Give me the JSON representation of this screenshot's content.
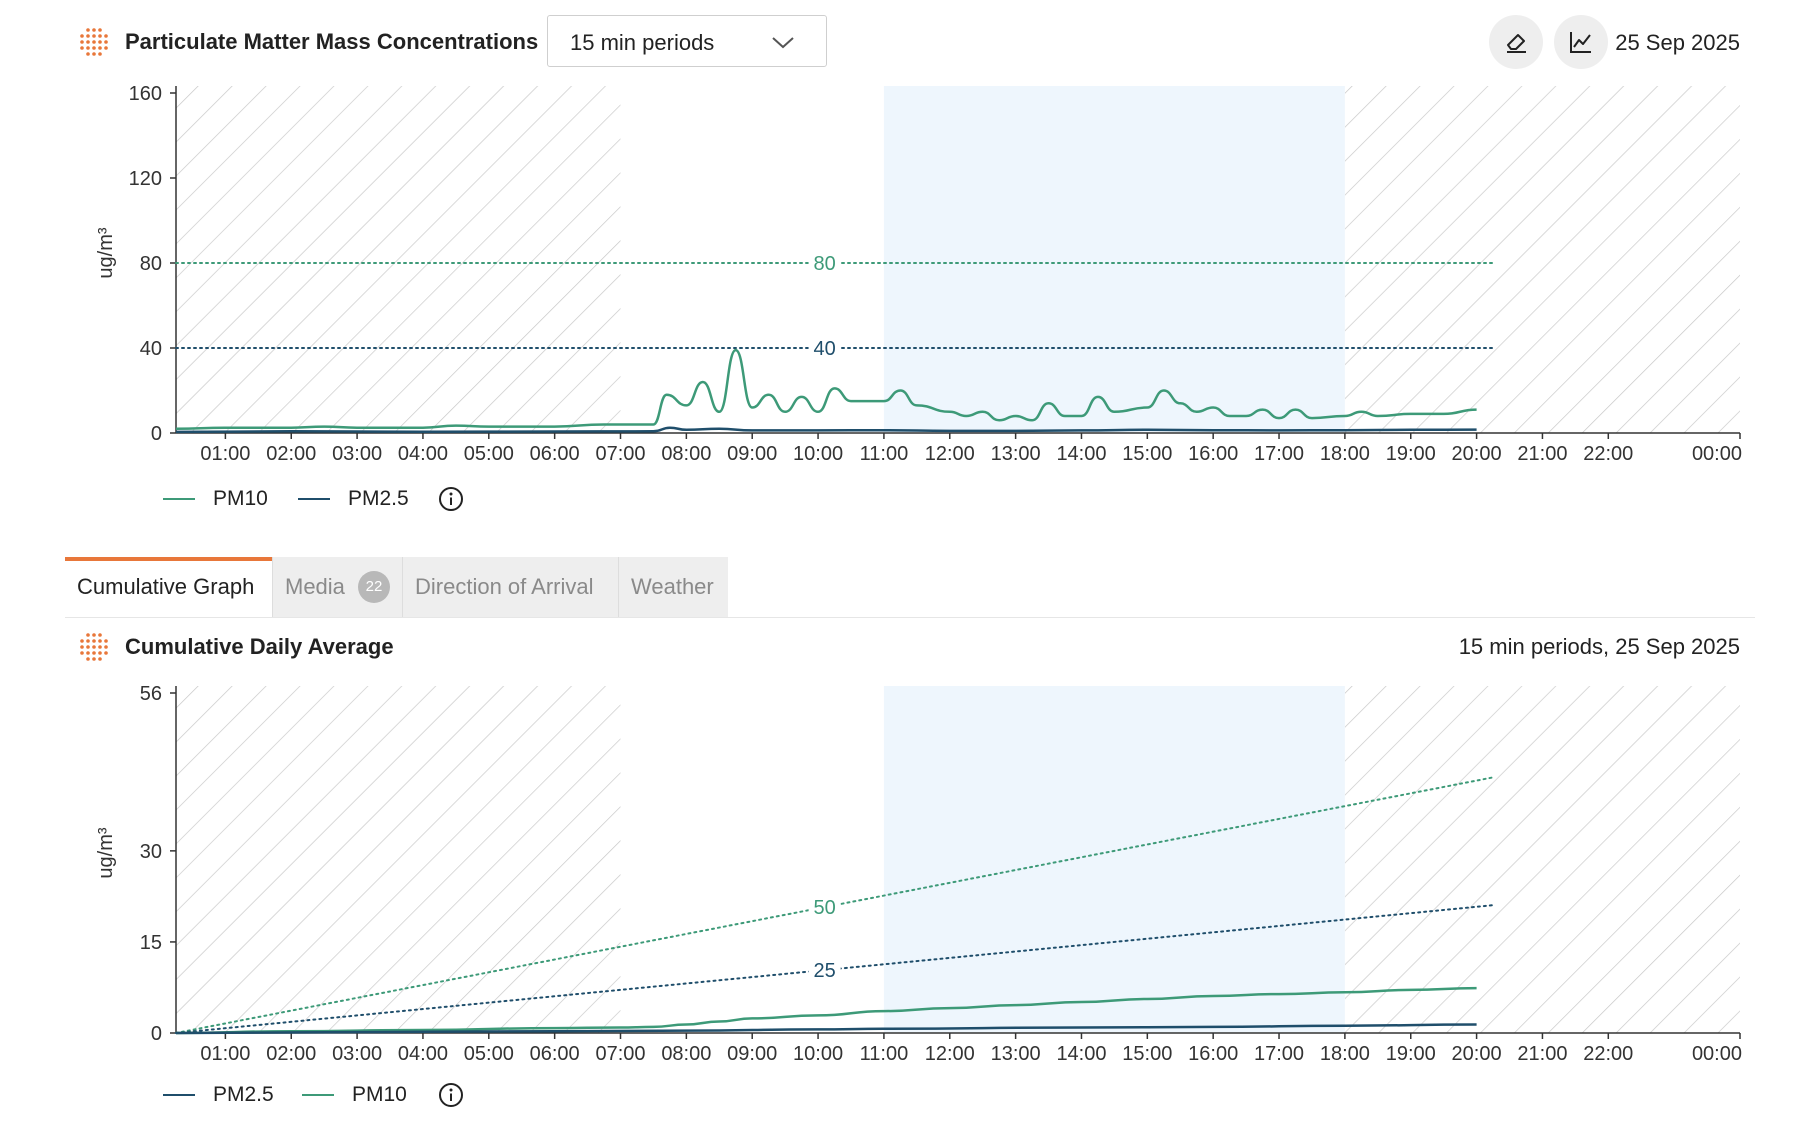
{
  "header": {
    "title": "Particulate Matter Mass Concentrations",
    "period_select": "15 min periods",
    "date": "25 Sep 2025",
    "icons": [
      "eraser-icon",
      "line-chart-icon"
    ]
  },
  "tabs": [
    {
      "label": "Cumulative Graph",
      "active": true
    },
    {
      "label": "Media",
      "badge": "22"
    },
    {
      "label": "Direction of Arrival"
    },
    {
      "label": "Weather"
    }
  ],
  "section2": {
    "title": "Cumulative Daily Average",
    "subtitle": "15 min periods, 25 Sep 2025"
  },
  "colors": {
    "pm10": "#3d9a78",
    "pm25": "#1f4e6b",
    "accent": "#e8773a",
    "shade": "#eef6fd"
  },
  "chart_data": [
    {
      "type": "line",
      "title": "Particulate Matter Mass Concentrations",
      "ylabel": "ug/m³",
      "ylim": [
        0,
        160
      ],
      "yticks": [
        0,
        40,
        80,
        120,
        160
      ],
      "xlim": [
        0.25,
        24
      ],
      "xticks": [
        {
          "h": 1,
          "label": "01:00"
        },
        {
          "h": 2,
          "label": "02:00"
        },
        {
          "h": 3,
          "label": "03:00"
        },
        {
          "h": 4,
          "label": "04:00"
        },
        {
          "h": 5,
          "label": "05:00"
        },
        {
          "h": 6,
          "label": "06:00"
        },
        {
          "h": 7,
          "label": "07:00"
        },
        {
          "h": 8,
          "label": "08:00"
        },
        {
          "h": 9,
          "label": "09:00"
        },
        {
          "h": 10,
          "label": "10:00"
        },
        {
          "h": 11,
          "label": "11:00"
        },
        {
          "h": 12,
          "label": "12:00"
        },
        {
          "h": 13,
          "label": "13:00"
        },
        {
          "h": 14,
          "label": "14:00"
        },
        {
          "h": 15,
          "label": "15:00"
        },
        {
          "h": 16,
          "label": "16:00"
        },
        {
          "h": 17,
          "label": "17:00"
        },
        {
          "h": 18,
          "label": "18:00"
        },
        {
          "h": 19,
          "label": "19:00"
        },
        {
          "h": 20,
          "label": "20:00"
        },
        {
          "h": 21,
          "label": "21:00"
        },
        {
          "h": 22,
          "label": "22:00"
        },
        {
          "h": 24,
          "label": "00:00"
        }
      ],
      "hatched_periods": [
        [
          0.25,
          7
        ],
        [
          18,
          24
        ]
      ],
      "highlight_period": [
        11,
        18
      ],
      "thresholds": [
        {
          "series": "PM10",
          "label": "80",
          "y0": 80,
          "y1": 80,
          "x_end": 20.25
        },
        {
          "series": "PM2.5",
          "label": "40",
          "y0": 40,
          "y1": 40,
          "x_end": 20.25
        }
      ],
      "legend": [
        "PM10",
        "PM2.5"
      ],
      "series": [
        {
          "name": "PM10",
          "color": "#3d9a78",
          "points": [
            [
              0.25,
              2
            ],
            [
              1,
              2.5
            ],
            [
              2,
              2.5
            ],
            [
              2.5,
              3
            ],
            [
              3,
              2.5
            ],
            [
              4,
              2.5
            ],
            [
              4.5,
              3.5
            ],
            [
              5,
              3
            ],
            [
              6,
              3
            ],
            [
              6.75,
              4
            ],
            [
              7,
              4
            ],
            [
              7.5,
              4
            ],
            [
              7.7,
              18
            ],
            [
              8,
              13
            ],
            [
              8.25,
              24
            ],
            [
              8.5,
              10
            ],
            [
              8.75,
              39
            ],
            [
              9,
              12
            ],
            [
              9.25,
              18
            ],
            [
              9.5,
              10
            ],
            [
              9.75,
              17
            ],
            [
              10,
              10
            ],
            [
              10.25,
              21
            ],
            [
              10.5,
              15
            ],
            [
              11,
              15
            ],
            [
              11.25,
              20
            ],
            [
              11.5,
              13
            ],
            [
              12,
              10
            ],
            [
              12.25,
              8
            ],
            [
              12.5,
              10
            ],
            [
              12.75,
              6
            ],
            [
              13,
              8
            ],
            [
              13.25,
              6
            ],
            [
              13.5,
              14
            ],
            [
              13.75,
              8
            ],
            [
              14,
              8
            ],
            [
              14.25,
              17
            ],
            [
              14.5,
              10
            ],
            [
              15,
              12
            ],
            [
              15.25,
              20
            ],
            [
              15.5,
              14
            ],
            [
              15.75,
              10
            ],
            [
              16,
              12
            ],
            [
              16.25,
              8
            ],
            [
              16.5,
              8
            ],
            [
              16.75,
              11
            ],
            [
              17,
              7
            ],
            [
              17.25,
              11
            ],
            [
              17.5,
              7
            ],
            [
              18,
              8
            ],
            [
              18.25,
              10
            ],
            [
              18.5,
              8
            ],
            [
              19,
              9
            ],
            [
              19.5,
              9
            ],
            [
              20,
              11
            ]
          ]
        },
        {
          "name": "PM2.5",
          "color": "#1f4e6b",
          "points": [
            [
              0.25,
              0.5
            ],
            [
              2,
              0.8
            ],
            [
              4,
              0.6
            ],
            [
              6,
              0.7
            ],
            [
              7.5,
              0.8
            ],
            [
              7.75,
              2.5
            ],
            [
              8,
              1.5
            ],
            [
              8.5,
              2
            ],
            [
              9,
              1.2
            ],
            [
              10,
              1.2
            ],
            [
              11,
              1.3
            ],
            [
              12,
              1
            ],
            [
              13,
              1
            ],
            [
              14,
              1.2
            ],
            [
              15,
              1.5
            ],
            [
              16,
              1.3
            ],
            [
              17,
              1.2
            ],
            [
              18,
              1.3
            ],
            [
              19,
              1.5
            ],
            [
              20,
              1.6
            ]
          ]
        }
      ]
    },
    {
      "type": "line",
      "title": "Cumulative Daily Average",
      "ylabel": "ug/m³",
      "ylim": [
        0,
        56
      ],
      "yticks": [
        0,
        15,
        30,
        56
      ],
      "xlim": [
        0.25,
        24
      ],
      "xticks": [
        {
          "h": 1,
          "label": "01:00"
        },
        {
          "h": 2,
          "label": "02:00"
        },
        {
          "h": 3,
          "label": "03:00"
        },
        {
          "h": 4,
          "label": "04:00"
        },
        {
          "h": 5,
          "label": "05:00"
        },
        {
          "h": 6,
          "label": "06:00"
        },
        {
          "h": 7,
          "label": "07:00"
        },
        {
          "h": 8,
          "label": "08:00"
        },
        {
          "h": 9,
          "label": "09:00"
        },
        {
          "h": 10,
          "label": "10:00"
        },
        {
          "h": 11,
          "label": "11:00"
        },
        {
          "h": 12,
          "label": "12:00"
        },
        {
          "h": 13,
          "label": "13:00"
        },
        {
          "h": 14,
          "label": "14:00"
        },
        {
          "h": 15,
          "label": "15:00"
        },
        {
          "h": 16,
          "label": "16:00"
        },
        {
          "h": 17,
          "label": "17:00"
        },
        {
          "h": 18,
          "label": "18:00"
        },
        {
          "h": 19,
          "label": "19:00"
        },
        {
          "h": 20,
          "label": "20:00"
        },
        {
          "h": 21,
          "label": "21:00"
        },
        {
          "h": 22,
          "label": "22:00"
        },
        {
          "h": 24,
          "label": "00:00"
        }
      ],
      "hatched_periods": [
        [
          0.25,
          7
        ],
        [
          18,
          24
        ]
      ],
      "highlight_period": [
        11,
        18
      ],
      "thresholds": [
        {
          "series": "PM10",
          "label": "50",
          "y0": 0,
          "y1": 50,
          "x_end": 20.25
        },
        {
          "series": "PM2.5",
          "label": "25",
          "y0": 0,
          "y1": 25,
          "x_end": 20.25
        }
      ],
      "legend": [
        "PM2.5",
        "PM10"
      ],
      "series": [
        {
          "name": "PM10",
          "color": "#3d9a78",
          "points": [
            [
              0.25,
              0
            ],
            [
              2,
              0.3
            ],
            [
              4,
              0.5
            ],
            [
              6,
              0.8
            ],
            [
              7,
              0.9
            ],
            [
              7.5,
              1
            ],
            [
              8,
              1.4
            ],
            [
              8.5,
              1.9
            ],
            [
              9,
              2.4
            ],
            [
              10,
              2.9
            ],
            [
              11,
              3.6
            ],
            [
              12,
              4.1
            ],
            [
              13,
              4.6
            ],
            [
              14,
              5.1
            ],
            [
              15,
              5.6
            ],
            [
              16,
              6.1
            ],
            [
              17,
              6.4
            ],
            [
              18,
              6.7
            ],
            [
              19,
              7.1
            ],
            [
              20,
              7.4
            ]
          ]
        },
        {
          "name": "PM2.5",
          "color": "#1f4e6b",
          "points": [
            [
              0.25,
              0
            ],
            [
              4,
              0.2
            ],
            [
              8,
              0.4
            ],
            [
              10,
              0.6
            ],
            [
              11,
              0.7
            ],
            [
              14,
              0.9
            ],
            [
              16,
              1.0
            ],
            [
              18,
              1.2
            ],
            [
              20,
              1.4
            ]
          ]
        }
      ]
    }
  ]
}
